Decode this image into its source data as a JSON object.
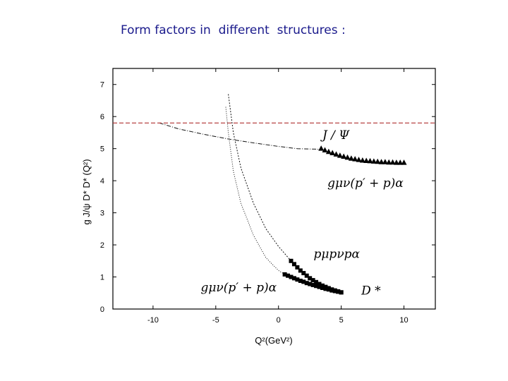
{
  "title": "Form factors in  different  structures :",
  "chart_data": {
    "type": "scatter",
    "xlabel": "Q²(GeV²)",
    "ylabel": "g J/ψ D* D* (Q²)",
    "xlim": [
      -13.2,
      12.5
    ],
    "ylim": [
      0,
      7.5
    ],
    "xticks": [
      -10,
      -5,
      0,
      5,
      10
    ],
    "yticks": [
      0,
      1,
      2,
      3,
      4,
      5,
      6,
      7
    ],
    "reference_line": {
      "y": 5.8,
      "style": "dashed",
      "color": "#b03030"
    },
    "series": [
      {
        "name": "J/Ψ  gμν(p′ + p)α",
        "marker": "triangle",
        "points": [
          [
            3.4,
            5.0
          ],
          [
            3.7,
            4.95
          ],
          [
            4.0,
            4.9
          ],
          [
            4.3,
            4.86
          ],
          [
            4.6,
            4.82
          ],
          [
            4.9,
            4.78
          ],
          [
            5.2,
            4.75
          ],
          [
            5.5,
            4.72
          ],
          [
            5.8,
            4.69
          ],
          [
            6.1,
            4.67
          ],
          [
            6.4,
            4.65
          ],
          [
            6.7,
            4.63
          ],
          [
            7.0,
            4.62
          ],
          [
            7.3,
            4.61
          ],
          [
            7.6,
            4.6
          ],
          [
            7.9,
            4.59
          ],
          [
            8.2,
            4.58
          ],
          [
            8.5,
            4.58
          ],
          [
            8.8,
            4.57
          ],
          [
            9.1,
            4.57
          ],
          [
            9.4,
            4.56
          ],
          [
            9.7,
            4.56
          ],
          [
            10.0,
            4.56
          ]
        ],
        "fit": [
          [
            -9.5,
            5.8
          ],
          [
            -8,
            5.62
          ],
          [
            -6,
            5.45
          ],
          [
            -4,
            5.3
          ],
          [
            -2,
            5.18
          ],
          [
            0,
            5.07
          ],
          [
            1.5,
            5.0
          ],
          [
            3.4,
            4.98
          ]
        ]
      },
      {
        "name": "D*  pμ pν pα",
        "marker": "square",
        "points": [
          [
            1.0,
            1.5
          ],
          [
            1.25,
            1.4
          ],
          [
            1.5,
            1.3
          ],
          [
            1.75,
            1.2
          ],
          [
            2.0,
            1.12
          ],
          [
            2.25,
            1.04
          ],
          [
            2.5,
            0.96
          ],
          [
            2.75,
            0.9
          ],
          [
            3.0,
            0.84
          ],
          [
            3.25,
            0.78
          ],
          [
            3.5,
            0.73
          ],
          [
            3.75,
            0.69
          ],
          [
            4.0,
            0.65
          ],
          [
            4.25,
            0.61
          ],
          [
            4.5,
            0.58
          ],
          [
            4.75,
            0.55
          ],
          [
            5.0,
            0.52
          ]
        ],
        "fit": [
          [
            -4.0,
            6.7
          ],
          [
            -3.6,
            5.5
          ],
          [
            -3.0,
            4.4
          ],
          [
            -2.0,
            3.3
          ],
          [
            -1.0,
            2.5
          ],
          [
            0.0,
            1.95
          ],
          [
            1.0,
            1.5
          ]
        ]
      },
      {
        "name": "D*  gμν(p′ + p)α",
        "marker": "square",
        "points": [
          [
            0.5,
            1.08
          ],
          [
            0.75,
            1.04
          ],
          [
            1.0,
            1.0
          ],
          [
            1.25,
            0.96
          ],
          [
            1.5,
            0.92
          ],
          [
            1.75,
            0.88
          ],
          [
            2.0,
            0.85
          ],
          [
            2.25,
            0.81
          ],
          [
            2.5,
            0.78
          ],
          [
            2.75,
            0.75
          ],
          [
            3.0,
            0.72
          ],
          [
            3.25,
            0.69
          ],
          [
            3.5,
            0.66
          ],
          [
            3.75,
            0.63
          ],
          [
            4.0,
            0.61
          ],
          [
            4.25,
            0.58
          ],
          [
            4.5,
            0.56
          ],
          [
            4.75,
            0.54
          ],
          [
            5.0,
            0.52
          ]
        ],
        "fit": [
          [
            -4.2,
            6.3
          ],
          [
            -4.0,
            5.5
          ],
          [
            -3.6,
            4.3
          ],
          [
            -3.0,
            3.3
          ],
          [
            -2.0,
            2.3
          ],
          [
            -1.0,
            1.6
          ],
          [
            0.0,
            1.2
          ],
          [
            0.5,
            1.08
          ]
        ]
      }
    ],
    "annotations": [
      {
        "text": "J / Ψ",
        "at": [
          3.5,
          5.3
        ]
      },
      {
        "text": "gμν(p′ + p)α",
        "at": [
          3.9,
          3.8
        ]
      },
      {
        "text": "pμpνpα",
        "at": [
          2.8,
          1.6
        ]
      },
      {
        "text": "gμν(p′ + p)α",
        "at": [
          -6.2,
          0.55
        ]
      },
      {
        "text": "D *",
        "at": [
          6.6,
          0.45
        ]
      }
    ]
  }
}
